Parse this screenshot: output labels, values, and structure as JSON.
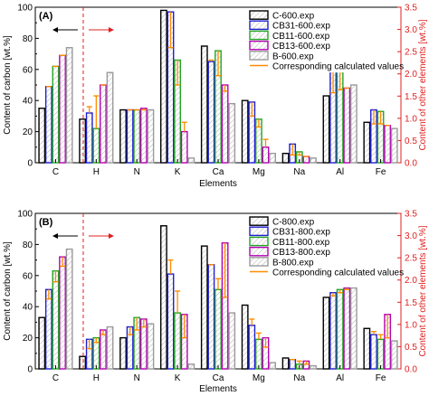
{
  "colors": {
    "C": "#000000",
    "CB31": "#1f1fd0",
    "CB11": "#22a522",
    "CB13": "#b400b4",
    "B": "#9a9a9a",
    "calc": "#ff8c00",
    "right_axis": "#e02020"
  },
  "chart_data": [
    {
      "type": "bar",
      "panel_label": "(A)",
      "categories": [
        "C",
        "H",
        "N",
        "K",
        "Ca",
        "Mg",
        "Na",
        "Al",
        "Fe"
      ],
      "xlabel": "Elements",
      "ylabel": "Content of carbon [wt.%]",
      "ylabel_right": "Content of other elements [wt.%]",
      "ylim": [
        0,
        100
      ],
      "ylim_right": [
        0,
        3.5
      ],
      "yticks": [
        "0",
        "20",
        "40",
        "60",
        "80",
        "100"
      ],
      "yticks_right": [
        "0.0",
        "0.5",
        "1.0",
        "1.5",
        "2.0",
        "2.5",
        "3.0",
        "3.5"
      ],
      "carbon_axis": "left (element C); all other elements on right axis (1.0 on right = 28.57 on left)",
      "series": [
        {
          "name": "C-600.exp",
          "values": [
            35,
            28,
            34,
            98,
            75,
            40,
            6,
            43,
            26
          ]
        },
        {
          "name": "CB31-600.exp",
          "values": [
            49,
            32,
            34,
            97,
            65,
            39,
            12,
            60,
            34
          ]
        },
        {
          "name": "CB11-600.exp",
          "values": [
            62,
            22,
            34,
            66,
            72,
            28,
            7,
            61,
            33
          ]
        },
        {
          "name": "CB13-600.exp",
          "values": [
            69,
            50,
            35,
            20,
            50,
            10,
            4,
            48,
            24
          ]
        },
        {
          "name": "B-600.exp",
          "values": [
            74,
            58,
            34,
            3,
            38,
            6,
            3,
            50,
            22
          ]
        }
      ],
      "calculated_legend": "Corresponding calculated values",
      "calculated": [
        [
          null,
          49,
          62,
          69,
          null
        ],
        [
          null,
          36,
          43,
          50,
          null
        ],
        [
          null,
          34,
          34,
          34,
          null
        ],
        [
          null,
          74,
          50,
          26,
          null
        ],
        [
          null,
          66,
          56,
          46,
          null
        ],
        [
          null,
          30,
          23,
          15,
          null
        ],
        [
          null,
          5,
          5,
          4,
          null
        ],
        [
          null,
          45,
          47,
          48,
          null
        ],
        [
          null,
          25,
          25,
          24,
          null
        ]
      ]
    },
    {
      "type": "bar",
      "panel_label": "(B)",
      "categories": [
        "C",
        "H",
        "N",
        "K",
        "Ca",
        "Mg",
        "Na",
        "Al",
        "Fe"
      ],
      "xlabel": "Elements",
      "ylabel": "Content of carbon [wt.%]",
      "ylabel_right": "Content of other elements [wt.%]",
      "ylim": [
        0,
        100
      ],
      "ylim_right": [
        0,
        3.5
      ],
      "yticks": [
        "0",
        "20",
        "40",
        "60",
        "80",
        "100"
      ],
      "yticks_right": [
        "0.0",
        "0.5",
        "1.0",
        "1.5",
        "2.0",
        "2.5",
        "3.0",
        "3.5"
      ],
      "carbon_axis": "left (element C); all other elements on right axis",
      "series": [
        {
          "name": "C-800.exp",
          "values": [
            33,
            8,
            20,
            92,
            79,
            41,
            7,
            46,
            26
          ]
        },
        {
          "name": "CB31-800.exp",
          "values": [
            51,
            19,
            27,
            61,
            67,
            28,
            6,
            49,
            22
          ]
        },
        {
          "name": "CB11-800.exp",
          "values": [
            63,
            20,
            33,
            36,
            51,
            19,
            3,
            51,
            19
          ]
        },
        {
          "name": "CB13-800.exp",
          "values": [
            72,
            25,
            32,
            35,
            81,
            20,
            5,
            52,
            35
          ]
        },
        {
          "name": "B-800.exp",
          "values": [
            77,
            27,
            29,
            3,
            36,
            4,
            2,
            52,
            18
          ]
        }
      ],
      "calculated_legend": "Corresponding calculated values",
      "calculated": [
        [
          null,
          45,
          56,
          66,
          null
        ],
        [
          null,
          13,
          17,
          22,
          null
        ],
        [
          null,
          22,
          25,
          27,
          null
        ],
        [
          null,
          70,
          50,
          20,
          null
        ],
        [
          null,
          67,
          58,
          46,
          null
        ],
        [
          null,
          32,
          23,
          14,
          null
        ],
        [
          null,
          6,
          5,
          3,
          null
        ],
        [
          null,
          47,
          49,
          51,
          null
        ],
        [
          null,
          24,
          22,
          20,
          null
        ]
      ]
    }
  ]
}
